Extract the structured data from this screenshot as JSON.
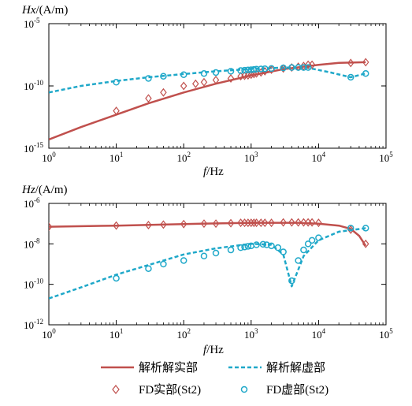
{
  "colors": {
    "real": "#C0504D",
    "imag": "#1FA8C9",
    "axis": "#000000"
  },
  "legend": {
    "analytic_real": "解析解实部",
    "analytic_imag": "解析解虚部",
    "fd_real": "FD实部(St2)",
    "fd_imag": "FD虚部(St2)"
  },
  "chart_data": [
    {
      "type": "line",
      "ylabel_italic": "Hx",
      "ylabel_rest": "/(A/m)",
      "xlabel_italic": "f",
      "xlabel_rest": "/Hz",
      "xscale": "log",
      "yscale": "log",
      "xlim": [
        1,
        100000
      ],
      "ylim": [
        1e-15,
        1e-05
      ],
      "x_ticks": [
        {
          "base": "10",
          "exp": "0",
          "value": 1
        },
        {
          "base": "10",
          "exp": "1",
          "value": 10
        },
        {
          "base": "10",
          "exp": "2",
          "value": 100
        },
        {
          "base": "10",
          "exp": "3",
          "value": 1000
        },
        {
          "base": "10",
          "exp": "4",
          "value": 10000
        },
        {
          "base": "10",
          "exp": "5",
          "value": 100000
        }
      ],
      "y_ticks": [
        {
          "base": "10",
          "exp": "-15",
          "value": 1e-15
        },
        {
          "base": "10",
          "exp": "-10",
          "value": 1e-10
        },
        {
          "base": "10",
          "exp": "-5",
          "value": 1e-05
        }
      ],
      "series": [
        {
          "kind": "line",
          "style": "solid",
          "color": "#C0504D",
          "x": [
            1,
            3,
            10,
            30,
            100,
            300,
            1000,
            3000,
            10000,
            20000,
            50000
          ],
          "y": [
            5e-15,
            5e-14,
            5e-13,
            4e-12,
            3e-11,
            1.5e-10,
            7e-10,
            2.2e-09,
            5e-09,
            7e-09,
            8e-09
          ]
        },
        {
          "kind": "line",
          "style": "dashed",
          "color": "#1FA8C9",
          "x": [
            1,
            3,
            10,
            30,
            100,
            300,
            1000,
            3000,
            7000,
            15000,
            30000,
            50000
          ],
          "y": [
            3e-11,
            1e-10,
            2.5e-10,
            5e-10,
            9e-10,
            1.5e-09,
            2.3e-09,
            3e-09,
            2.8e-09,
            1.2e-09,
            5e-10,
            1e-09
          ]
        },
        {
          "kind": "marker",
          "marker": "diamond",
          "color": "#C0504D",
          "x": [
            10,
            30,
            50,
            100,
            150,
            200,
            300,
            500,
            700,
            800,
            900,
            1000,
            1100,
            1200,
            1400,
            1600,
            2000,
            3000,
            4000,
            5000,
            6000,
            7000,
            8000,
            30000,
            50000
          ],
          "y": [
            1e-12,
            1e-11,
            3e-11,
            1e-10,
            1.5e-10,
            2e-10,
            3e-10,
            4e-10,
            6e-10,
            6.5e-10,
            7e-10,
            8e-10,
            9e-10,
            1e-09,
            1.2e-09,
            1.5e-09,
            2e-09,
            2.5e-09,
            3e-09,
            3.5e-09,
            4e-09,
            5e-09,
            5e-09,
            7e-09,
            8e-09
          ]
        },
        {
          "kind": "marker",
          "marker": "circle",
          "color": "#1FA8C9",
          "x": [
            10,
            30,
            50,
            100,
            200,
            300,
            500,
            700,
            800,
            900,
            1000,
            1100,
            1200,
            1400,
            1600,
            2000,
            3000,
            4000,
            5000,
            6000,
            7000,
            30000,
            50000
          ],
          "y": [
            2e-10,
            4e-10,
            6e-10,
            8e-10,
            1e-09,
            1.2e-09,
            1.5e-09,
            1.7e-09,
            1.8e-09,
            1.9e-09,
            2e-09,
            2.1e-09,
            2.2e-09,
            2.3e-09,
            2.4e-09,
            2.5e-09,
            2.8e-09,
            3e-09,
            3e-09,
            3e-09,
            3e-09,
            5e-10,
            1e-09
          ]
        }
      ]
    },
    {
      "type": "line",
      "ylabel_italic": "Hz",
      "ylabel_rest": "/(A/m)",
      "xlabel_italic": "f",
      "xlabel_rest": "/Hz",
      "xscale": "log",
      "yscale": "log",
      "xlim": [
        1,
        100000
      ],
      "ylim": [
        1e-12,
        1e-06
      ],
      "x_ticks": [
        {
          "base": "10",
          "exp": "0",
          "value": 1
        },
        {
          "base": "10",
          "exp": "1",
          "value": 10
        },
        {
          "base": "10",
          "exp": "2",
          "value": 100
        },
        {
          "base": "10",
          "exp": "3",
          "value": 1000
        },
        {
          "base": "10",
          "exp": "4",
          "value": 10000
        },
        {
          "base": "10",
          "exp": "5",
          "value": 100000
        }
      ],
      "y_ticks": [
        {
          "base": "10",
          "exp": "-12",
          "value": 1e-12
        },
        {
          "base": "10",
          "exp": "-10",
          "value": 1e-10
        },
        {
          "base": "10",
          "exp": "-8",
          "value": 1e-08
        },
        {
          "base": "10",
          "exp": "-6",
          "value": 1e-06
        }
      ],
      "series": [
        {
          "kind": "line",
          "style": "solid",
          "color": "#C0504D",
          "x": [
            1,
            10,
            100,
            1000,
            5000,
            10000,
            20000,
            30000,
            40000,
            50000
          ],
          "y": [
            7e-08,
            8e-08,
            9.5e-08,
            1.1e-07,
            1.1e-07,
            1e-07,
            8e-08,
            5.5e-08,
            2.5e-08,
            8e-09
          ]
        },
        {
          "kind": "line",
          "style": "dashed",
          "color": "#1FA8C9",
          "x": [
            1,
            3,
            10,
            30,
            100,
            300,
            1000,
            2000,
            3000,
            4000,
            6000,
            10000,
            20000,
            50000
          ],
          "y": [
            2e-11,
            7e-11,
            3e-10,
            9e-10,
            3e-09,
            6e-09,
            1e-08,
            9e-09,
            3e-09,
            8e-11,
            2.5e-09,
            1.5e-08,
            4e-08,
            6e-08
          ]
        },
        {
          "kind": "marker",
          "marker": "diamond",
          "color": "#C0504D",
          "x": [
            1,
            10,
            30,
            50,
            100,
            200,
            300,
            500,
            700,
            800,
            900,
            1000,
            1100,
            1200,
            1400,
            1600,
            2000,
            3000,
            4000,
            5000,
            6000,
            7000,
            8000,
            10000,
            30000,
            50000
          ],
          "y": [
            7e-08,
            8e-08,
            8.5e-08,
            9e-08,
            9.5e-08,
            1e-07,
            1e-07,
            1.05e-07,
            1.1e-07,
            1.1e-07,
            1.1e-07,
            1.1e-07,
            1.1e-07,
            1.1e-07,
            1.1e-07,
            1.1e-07,
            1.1e-07,
            1.15e-07,
            1.15e-07,
            1.15e-07,
            1.15e-07,
            1.15e-07,
            1.15e-07,
            1.1e-07,
            5e-08,
            1e-08
          ]
        },
        {
          "kind": "marker",
          "marker": "circle",
          "color": "#1FA8C9",
          "x": [
            10,
            30,
            50,
            100,
            200,
            300,
            500,
            700,
            800,
            900,
            1000,
            1200,
            1500,
            1700,
            2000,
            2500,
            3000,
            4000,
            5000,
            6000,
            7000,
            8000,
            10000,
            30000,
            50000
          ],
          "y": [
            2e-10,
            6e-10,
            1e-09,
            1.5e-09,
            2.5e-09,
            3.5e-09,
            5e-09,
            6.5e-09,
            7e-09,
            7.5e-09,
            8e-09,
            9e-09,
            9.5e-09,
            9e-09,
            8e-09,
            6.5e-09,
            4e-09,
            1.5e-10,
            1.5e-09,
            5e-09,
            1e-08,
            1.5e-08,
            2e-08,
            6e-08,
            6e-08
          ]
        }
      ]
    }
  ]
}
